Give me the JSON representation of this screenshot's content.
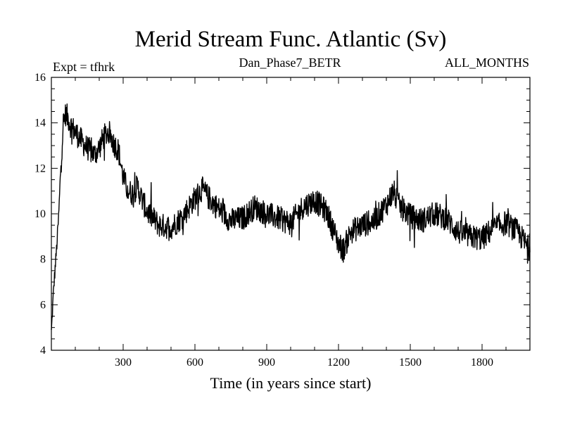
{
  "chart_data": {
    "type": "line",
    "title": "Merid Stream Func. Atlantic (Sv)",
    "subtitle_left": "Expt = tfhrk",
    "subtitle_center": "Dan_Phase7_BETR",
    "subtitle_right": "ALL_MONTHS",
    "xlabel": "Time (in years since start)",
    "ylabel": "",
    "xlim": [
      0,
      2000
    ],
    "ylim": [
      4,
      16
    ],
    "xticks": [
      300,
      600,
      900,
      1200,
      1500,
      1800
    ],
    "xtick_labels": [
      "300",
      "600",
      "900",
      "1200",
      "1500",
      "1800"
    ],
    "yticks": [
      4,
      6,
      8,
      10,
      12,
      14,
      16
    ],
    "ytick_labels": [
      "4",
      "6",
      "8",
      "10",
      "12",
      "14",
      "16"
    ],
    "grid": false,
    "series": [
      {
        "name": "Merid Stream Func. Atlantic",
        "color": "#000000",
        "x": [
          0,
          10,
          20,
          30,
          40,
          50,
          60,
          70,
          80,
          100,
          120,
          140,
          160,
          180,
          200,
          220,
          240,
          260,
          280,
          300,
          320,
          340,
          360,
          380,
          400,
          450,
          500,
          550,
          600,
          630,
          650,
          700,
          750,
          800,
          850,
          900,
          950,
          1000,
          1050,
          1100,
          1150,
          1200,
          1220,
          1250,
          1300,
          1350,
          1400,
          1430,
          1450,
          1500,
          1550,
          1600,
          1650,
          1700,
          1750,
          1800,
          1850,
          1900,
          1950,
          2000
        ],
        "values": [
          4.8,
          6.8,
          8.2,
          9.8,
          12.2,
          14.0,
          14.4,
          14.2,
          13.9,
          13.6,
          13.3,
          13.0,
          12.8,
          12.6,
          12.9,
          13.4,
          13.6,
          13.1,
          12.8,
          11.6,
          11.0,
          10.9,
          11.2,
          10.6,
          10.1,
          9.5,
          9.4,
          9.9,
          10.7,
          11.1,
          10.8,
          10.2,
          9.7,
          9.8,
          10.3,
          10.0,
          9.8,
          9.6,
          10.3,
          10.6,
          10.1,
          8.7,
          8.4,
          9.2,
          9.5,
          9.7,
          10.4,
          11.0,
          10.4,
          9.9,
          9.7,
          10.0,
          9.8,
          9.2,
          9.0,
          8.9,
          9.4,
          9.6,
          9.2,
          8.4
        ]
      }
    ]
  }
}
